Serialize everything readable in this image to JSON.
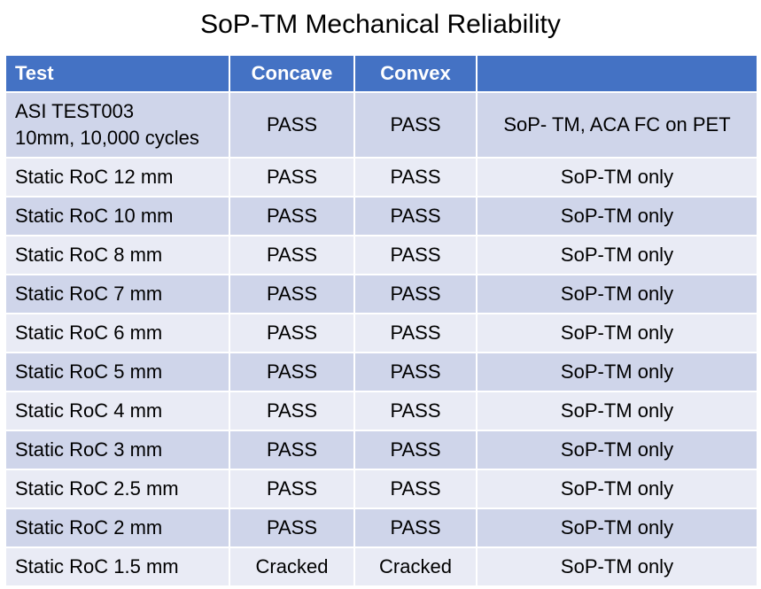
{
  "title": "SoP-TM Mechanical Reliability",
  "table": {
    "headers": [
      "Test",
      "Concave",
      "Convex",
      ""
    ],
    "rows": [
      {
        "test": "ASI TEST003\n10mm, 10,000 cycles",
        "concave": "PASS",
        "convex": "PASS",
        "note": "SoP- TM, ACA FC on PET"
      },
      {
        "test": "Static RoC 12 mm",
        "concave": "PASS",
        "convex": "PASS",
        "note": "SoP-TM only"
      },
      {
        "test": "Static RoC  10 mm",
        "concave": "PASS",
        "convex": "PASS",
        "note": "SoP-TM only"
      },
      {
        "test": "Static RoC  8 mm",
        "concave": "PASS",
        "convex": "PASS",
        "note": "SoP-TM only"
      },
      {
        "test": "Static RoC  7 mm",
        "concave": "PASS",
        "convex": "PASS",
        "note": "SoP-TM only"
      },
      {
        "test": "Static RoC  6 mm",
        "concave": "PASS",
        "convex": "PASS",
        "note": "SoP-TM only"
      },
      {
        "test": "Static RoC  5 mm",
        "concave": "PASS",
        "convex": "PASS",
        "note": "SoP-TM only"
      },
      {
        "test": "Static RoC  4 mm",
        "concave": "PASS",
        "convex": "PASS",
        "note": "SoP-TM only"
      },
      {
        "test": "Static RoC  3 mm",
        "concave": "PASS",
        "convex": "PASS",
        "note": "SoP-TM only"
      },
      {
        "test": "Static RoC  2.5 mm",
        "concave": "PASS",
        "convex": "PASS",
        "note": "SoP-TM only"
      },
      {
        "test": "Static RoC  2 mm",
        "concave": "PASS",
        "convex": "PASS",
        "note": "SoP-TM only"
      },
      {
        "test": "Static RoC  1.5 mm",
        "concave": "Cracked",
        "convex": "Cracked",
        "note": "SoP-TM only"
      }
    ]
  },
  "colors": {
    "header_bg": "#4472c4",
    "row_band_dark": "#cfd5ea",
    "row_band_light": "#e9ebf5"
  }
}
